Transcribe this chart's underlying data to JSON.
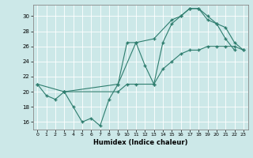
{
  "xlabel": "Humidex (Indice chaleur)",
  "bg_color": "#cce8e8",
  "line_color": "#2e7d6e",
  "grid_color": "#ffffff",
  "xlim": [
    -0.5,
    23.5
  ],
  "ylim": [
    15.0,
    31.5
  ],
  "xticks": [
    0,
    1,
    2,
    3,
    4,
    5,
    6,
    7,
    8,
    9,
    10,
    11,
    12,
    13,
    14,
    15,
    16,
    17,
    18,
    19,
    20,
    21,
    22,
    23
  ],
  "yticks": [
    16,
    18,
    20,
    22,
    24,
    26,
    28,
    30
  ],
  "series1_x": [
    0,
    1,
    2,
    3,
    4,
    5,
    6,
    7,
    8,
    9,
    10,
    11,
    12,
    13,
    14,
    15,
    16,
    17,
    18,
    19,
    20,
    21,
    22
  ],
  "series1_y": [
    21,
    19.5,
    19,
    20,
    18,
    16,
    16.5,
    15.5,
    19,
    21,
    26.5,
    26.5,
    23.5,
    21,
    26.5,
    29,
    30,
    31,
    31,
    30,
    29,
    27,
    25.5
  ],
  "series2_x": [
    0,
    3,
    9,
    10,
    11,
    13,
    14,
    15,
    16,
    17,
    18,
    19,
    20,
    21,
    22,
    23
  ],
  "series2_y": [
    21,
    20,
    20,
    21,
    21,
    21,
    23,
    24,
    25,
    25.5,
    25.5,
    26,
    26,
    26,
    26,
    25.5
  ],
  "series3_x": [
    3,
    9,
    11,
    13,
    15,
    16,
    17,
    18,
    19,
    20,
    21,
    22,
    23
  ],
  "series3_y": [
    20,
    21,
    26.5,
    27,
    29.5,
    30,
    31,
    31,
    29.5,
    29,
    28.5,
    26.5,
    25.5
  ]
}
